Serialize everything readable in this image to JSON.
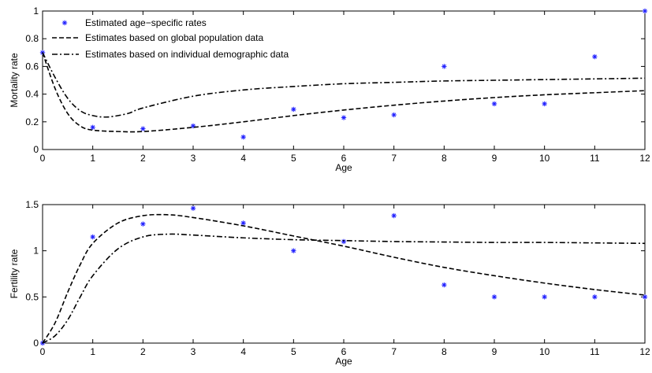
{
  "chart_data": [
    {
      "type": "line",
      "xlabel": "Age",
      "ylabel": "Mortality rate",
      "xlim": [
        0,
        12
      ],
      "ylim": [
        0,
        1
      ],
      "xticks": [
        0,
        1,
        2,
        3,
        4,
        5,
        6,
        7,
        8,
        9,
        10,
        11,
        12
      ],
      "xtick_labels": [
        "0",
        "1",
        "2",
        "3",
        "4",
        "5",
        "6",
        "7",
        "8",
        "9",
        "10",
        "11",
        "12"
      ],
      "yticks": [
        0,
        0.2,
        0.4,
        0.6,
        0.8,
        1
      ],
      "ytick_labels": [
        "0",
        "0.2",
        "0.4",
        "0.6",
        "0.8",
        "1"
      ],
      "grid": false,
      "legend_placement": "top-left",
      "series": [
        {
          "name": "Estimated age−specific rates",
          "style": "markers",
          "marker": "*",
          "color": "#1f1fff",
          "x": [
            0,
            1,
            2,
            3,
            4,
            5,
            6,
            7,
            8,
            9,
            10,
            11,
            12
          ],
          "y": [
            0.7,
            0.16,
            0.15,
            0.17,
            0.09,
            0.29,
            0.23,
            0.25,
            0.6,
            0.33,
            0.33,
            0.67,
            1.0
          ]
        },
        {
          "name": "Estimates based on global population data",
          "style": "dashed",
          "color": "#000000",
          "x": [
            0,
            0.25,
            0.5,
            0.75,
            1,
            1.5,
            2,
            3,
            4,
            5,
            6,
            7,
            8,
            9,
            10,
            11,
            12
          ],
          "y": [
            0.7,
            0.44,
            0.26,
            0.17,
            0.14,
            0.13,
            0.13,
            0.16,
            0.2,
            0.245,
            0.285,
            0.32,
            0.35,
            0.375,
            0.395,
            0.41,
            0.425
          ]
        },
        {
          "name": "Estimates based on individual demographic data",
          "style": "dash-dot",
          "color": "#000000",
          "x": [
            0,
            0.25,
            0.5,
            0.75,
            1,
            1.3,
            1.7,
            2,
            3,
            4,
            5,
            6,
            7,
            8,
            9,
            10,
            11,
            12
          ],
          "y": [
            0.7,
            0.52,
            0.37,
            0.28,
            0.245,
            0.235,
            0.26,
            0.3,
            0.385,
            0.43,
            0.455,
            0.475,
            0.485,
            0.495,
            0.5,
            0.505,
            0.51,
            0.515
          ]
        }
      ]
    },
    {
      "type": "line",
      "xlabel": "Age",
      "ylabel": "Fertility rate",
      "xlim": [
        0,
        12
      ],
      "ylim": [
        0,
        1.5
      ],
      "xticks": [
        0,
        1,
        2,
        3,
        4,
        5,
        6,
        7,
        8,
        9,
        10,
        11,
        12
      ],
      "xtick_labels": [
        "0",
        "1",
        "2",
        "3",
        "4",
        "5",
        "6",
        "7",
        "8",
        "9",
        "10",
        "11",
        "12"
      ],
      "yticks": [
        0,
        0.5,
        1,
        1.5
      ],
      "ytick_labels": [
        "0",
        "0.5",
        "1",
        "1.5"
      ],
      "grid": false,
      "series": [
        {
          "name": "Estimated age−specific rates",
          "style": "markers",
          "marker": "*",
          "color": "#1f1fff",
          "x": [
            0,
            1,
            2,
            3,
            4,
            5,
            6,
            7,
            8,
            9,
            10,
            11,
            12
          ],
          "y": [
            0.0,
            1.15,
            1.29,
            1.46,
            1.3,
            1.0,
            1.1,
            1.38,
            0.63,
            0.5,
            0.5,
            0.5,
            0.5
          ]
        },
        {
          "name": "Estimates based on global population data",
          "style": "dashed",
          "color": "#000000",
          "x": [
            0,
            0.25,
            0.5,
            0.75,
            1,
            1.5,
            2,
            2.5,
            3,
            4,
            5,
            6,
            7,
            8,
            9,
            10,
            11,
            12
          ],
          "y": [
            0.0,
            0.22,
            0.55,
            0.85,
            1.08,
            1.3,
            1.38,
            1.39,
            1.36,
            1.27,
            1.16,
            1.05,
            0.93,
            0.82,
            0.73,
            0.65,
            0.58,
            0.52
          ]
        },
        {
          "name": "Estimates based on individual demographic data",
          "style": "dash-dot",
          "color": "#000000",
          "x": [
            0,
            0.25,
            0.5,
            0.75,
            1,
            1.5,
            2,
            2.5,
            3,
            4,
            5,
            6,
            7,
            8,
            9,
            10,
            11,
            12
          ],
          "y": [
            0.0,
            0.08,
            0.25,
            0.5,
            0.73,
            1.02,
            1.15,
            1.18,
            1.17,
            1.14,
            1.12,
            1.11,
            1.1,
            1.095,
            1.09,
            1.09,
            1.085,
            1.08
          ]
        }
      ]
    }
  ]
}
